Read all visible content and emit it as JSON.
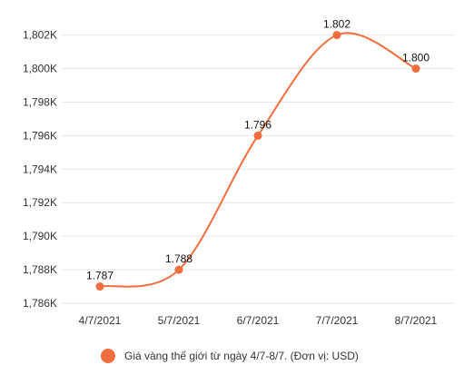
{
  "chart_data": {
    "type": "line",
    "categories": [
      "4/7/2021",
      "5/7/2021",
      "6/7/2021",
      "7/7/2021",
      "8/7/2021"
    ],
    "series": [
      {
        "name": "Giá vàng thế giới từ ngày 4/7-8/7. (Đơn vị: USD)",
        "values": [
          1787,
          1788,
          1796,
          1802,
          1800
        ],
        "data_labels": [
          "1.787",
          "1.788",
          "1.796",
          "1.802",
          "1.800"
        ],
        "color": "#f26d3d"
      }
    ],
    "y_ticks": [
      1786,
      1788,
      1790,
      1792,
      1794,
      1796,
      1798,
      1800,
      1802
    ],
    "y_tick_labels": [
      "1,786K",
      "1,788K",
      "1,790K",
      "1,792K",
      "1,794K",
      "1,796K",
      "1,798K",
      "1,800K",
      "1,802K"
    ],
    "ylim": [
      1786,
      1802.9
    ],
    "grid": true,
    "legend_position": "bottom",
    "smooth": true
  }
}
